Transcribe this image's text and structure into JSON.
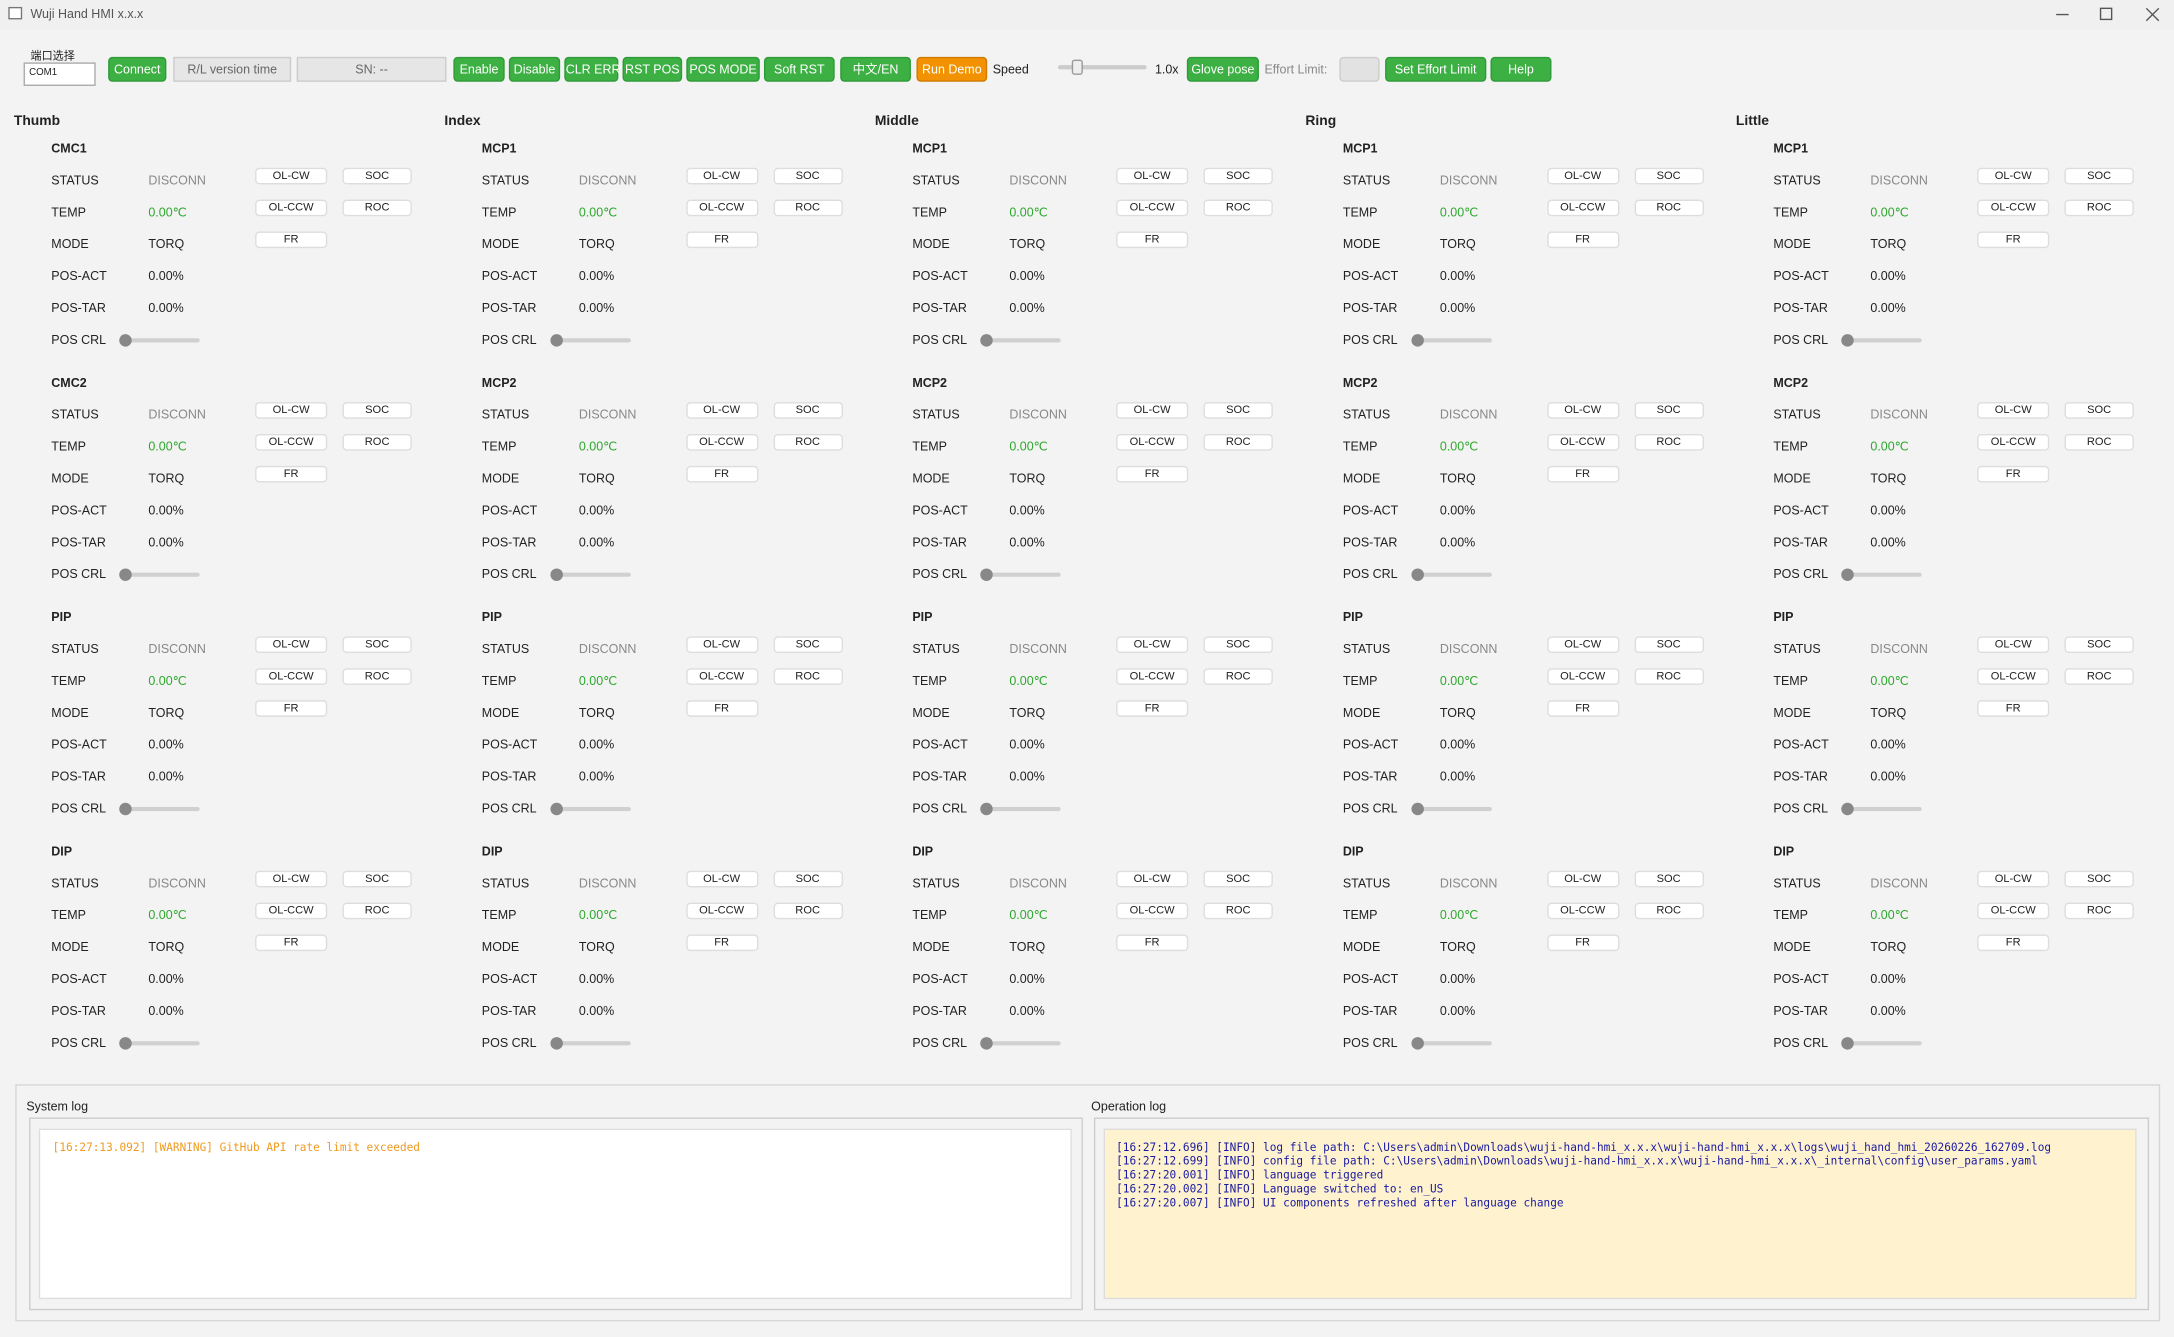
{
  "window": {
    "title": "Wuji Hand HMI x.x.x"
  },
  "toolbar": {
    "port_label": "端口选择",
    "port": "COM1",
    "connect": "Connect",
    "version": "R/L version time",
    "sn": "SN: --",
    "buttons": [
      "Enable",
      "Disable",
      "CLR ERR",
      "RST POS",
      "POS MODE",
      "Soft RST",
      "中文/EN"
    ],
    "run_demo": "Run Demo",
    "speed_label": "Speed",
    "speed_value": "1.0x",
    "glove": "Glove pose",
    "effort_label": "Effort Limit:",
    "set_effort": "Set Effort Limit",
    "help": "Help"
  },
  "fingers": [
    {
      "name": "Thumb",
      "joints": [
        {
          "name": "CMC1",
          "rows": [
            [
              "STATUS",
              "DISCONN"
            ],
            [
              "TEMP",
              "0.00℃"
            ],
            [
              "MODE",
              "TORQ"
            ],
            [
              "POS-ACT",
              "0.00%"
            ],
            [
              "POS-TAR",
              "0.00%"
            ],
            [
              "POS CRL"
            ]
          ],
          "buttons": [
            "OL-CW",
            "SOC",
            "OL-CCW",
            "ROC",
            "FR"
          ]
        },
        {
          "name": "CMC2",
          "rows": [
            [
              "STATUS",
              "DISCONN"
            ],
            [
              "TEMP",
              "0.00℃"
            ],
            [
              "MODE",
              "TORQ"
            ],
            [
              "POS-ACT",
              "0.00%"
            ],
            [
              "POS-TAR",
              "0.00%"
            ],
            [
              "POS CRL"
            ]
          ],
          "buttons": [
            "OL-CW",
            "SOC",
            "OL-CCW",
            "ROC",
            "FR"
          ]
        },
        {
          "name": "PIP",
          "rows": [
            [
              "STATUS",
              "DISCONN"
            ],
            [
              "TEMP",
              "0.00℃"
            ],
            [
              "MODE",
              "TORQ"
            ],
            [
              "POS-ACT",
              "0.00%"
            ],
            [
              "POS-TAR",
              "0.00%"
            ],
            [
              "POS CRL"
            ]
          ],
          "buttons": [
            "OL-CW",
            "SOC",
            "OL-CCW",
            "ROC",
            "FR"
          ]
        },
        {
          "name": "DIP",
          "rows": [
            [
              "STATUS",
              "DISCONN"
            ],
            [
              "TEMP",
              "0.00℃"
            ],
            [
              "MODE",
              "TORQ"
            ],
            [
              "POS-ACT",
              "0.00%"
            ],
            [
              "POS-TAR",
              "0.00%"
            ],
            [
              "POS CRL"
            ]
          ],
          "buttons": [
            "OL-CW",
            "SOC",
            "OL-CCW",
            "ROC",
            "FR"
          ]
        }
      ]
    },
    {
      "name": "Index",
      "joints": [
        {
          "name": "MCP1",
          "rows": [
            [
              "STATUS",
              "DISCONN"
            ],
            [
              "TEMP",
              "0.00℃"
            ],
            [
              "MODE",
              "TORQ"
            ],
            [
              "POS-ACT",
              "0.00%"
            ],
            [
              "POS-TAR",
              "0.00%"
            ],
            [
              "POS CRL"
            ]
          ],
          "buttons": [
            "OL-CW",
            "SOC",
            "OL-CCW",
            "ROC",
            "FR"
          ]
        },
        {
          "name": "MCP2",
          "rows": [
            [
              "STATUS",
              "DISCONN"
            ],
            [
              "TEMP",
              "0.00℃"
            ],
            [
              "MODE",
              "TORQ"
            ],
            [
              "POS-ACT",
              "0.00%"
            ],
            [
              "POS-TAR",
              "0.00%"
            ],
            [
              "POS CRL"
            ]
          ],
          "buttons": [
            "OL-CW",
            "SOC",
            "OL-CCW",
            "ROC",
            "FR"
          ]
        },
        {
          "name": "PIP",
          "rows": [
            [
              "STATUS",
              "DISCONN"
            ],
            [
              "TEMP",
              "0.00℃"
            ],
            [
              "MODE",
              "TORQ"
            ],
            [
              "POS-ACT",
              "0.00%"
            ],
            [
              "POS-TAR",
              "0.00%"
            ],
            [
              "POS CRL"
            ]
          ],
          "buttons": [
            "OL-CW",
            "SOC",
            "OL-CCW",
            "ROC",
            "FR"
          ]
        },
        {
          "name": "DIP",
          "rows": [
            [
              "STATUS",
              "DISCONN"
            ],
            [
              "TEMP",
              "0.00℃"
            ],
            [
              "MODE",
              "TORQ"
            ],
            [
              "POS-ACT",
              "0.00%"
            ],
            [
              "POS-TAR",
              "0.00%"
            ],
            [
              "POS CRL"
            ]
          ],
          "buttons": [
            "OL-CW",
            "SOC",
            "OL-CCW",
            "ROC",
            "FR"
          ]
        }
      ]
    },
    {
      "name": "Middle",
      "joints": [
        {
          "name": "MCP1",
          "rows": [
            [
              "STATUS",
              "DISCONN"
            ],
            [
              "TEMP",
              "0.00℃"
            ],
            [
              "MODE",
              "TORQ"
            ],
            [
              "POS-ACT",
              "0.00%"
            ],
            [
              "POS-TAR",
              "0.00%"
            ],
            [
              "POS CRL"
            ]
          ],
          "buttons": [
            "OL-CW",
            "SOC",
            "OL-CCW",
            "ROC",
            "FR"
          ]
        },
        {
          "name": "MCP2",
          "rows": [
            [
              "STATUS",
              "DISCONN"
            ],
            [
              "TEMP",
              "0.00℃"
            ],
            [
              "MODE",
              "TORQ"
            ],
            [
              "POS-ACT",
              "0.00%"
            ],
            [
              "POS-TAR",
              "0.00%"
            ],
            [
              "POS CRL"
            ]
          ],
          "buttons": [
            "OL-CW",
            "SOC",
            "OL-CCW",
            "ROC",
            "FR"
          ]
        },
        {
          "name": "PIP",
          "rows": [
            [
              "STATUS",
              "DISCONN"
            ],
            [
              "TEMP",
              "0.00℃"
            ],
            [
              "MODE",
              "TORQ"
            ],
            [
              "POS-ACT",
              "0.00%"
            ],
            [
              "POS-TAR",
              "0.00%"
            ],
            [
              "POS CRL"
            ]
          ],
          "buttons": [
            "OL-CW",
            "SOC",
            "OL-CCW",
            "ROC",
            "FR"
          ]
        },
        {
          "name": "DIP",
          "rows": [
            [
              "STATUS",
              "DISCONN"
            ],
            [
              "TEMP",
              "0.00℃"
            ],
            [
              "MODE",
              "TORQ"
            ],
            [
              "POS-ACT",
              "0.00%"
            ],
            [
              "POS-TAR",
              "0.00%"
            ],
            [
              "POS CRL"
            ]
          ],
          "buttons": [
            "OL-CW",
            "SOC",
            "OL-CCW",
            "ROC",
            "FR"
          ]
        }
      ]
    },
    {
      "name": "Ring",
      "joints": [
        {
          "name": "MCP1",
          "rows": [
            [
              "STATUS",
              "DISCONN"
            ],
            [
              "TEMP",
              "0.00℃"
            ],
            [
              "MODE",
              "TORQ"
            ],
            [
              "POS-ACT",
              "0.00%"
            ],
            [
              "POS-TAR",
              "0.00%"
            ],
            [
              "POS CRL"
            ]
          ],
          "buttons": [
            "OL-CW",
            "SOC",
            "OL-CCW",
            "ROC",
            "FR"
          ]
        },
        {
          "name": "MCP2",
          "rows": [
            [
              "STATUS",
              "DISCONN"
            ],
            [
              "TEMP",
              "0.00℃"
            ],
            [
              "MODE",
              "TORQ"
            ],
            [
              "POS-ACT",
              "0.00%"
            ],
            [
              "POS-TAR",
              "0.00%"
            ],
            [
              "POS CRL"
            ]
          ],
          "buttons": [
            "OL-CW",
            "SOC",
            "OL-CCW",
            "ROC",
            "FR"
          ]
        },
        {
          "name": "PIP",
          "rows": [
            [
              "STATUS",
              "DISCONN"
            ],
            [
              "TEMP",
              "0.00℃"
            ],
            [
              "MODE",
              "TORQ"
            ],
            [
              "POS-ACT",
              "0.00%"
            ],
            [
              "POS-TAR",
              "0.00%"
            ],
            [
              "POS CRL"
            ]
          ],
          "buttons": [
            "OL-CW",
            "SOC",
            "OL-CCW",
            "ROC",
            "FR"
          ]
        },
        {
          "name": "DIP",
          "rows": [
            [
              "STATUS",
              "DISCONN"
            ],
            [
              "TEMP",
              "0.00℃"
            ],
            [
              "MODE",
              "TORQ"
            ],
            [
              "POS-ACT",
              "0.00%"
            ],
            [
              "POS-TAR",
              "0.00%"
            ],
            [
              "POS CRL"
            ]
          ],
          "buttons": [
            "OL-CW",
            "SOC",
            "OL-CCW",
            "ROC",
            "FR"
          ]
        }
      ]
    },
    {
      "name": "Little",
      "joints": [
        {
          "name": "MCP1",
          "rows": [
            [
              "STATUS",
              "DISCONN"
            ],
            [
              "TEMP",
              "0.00℃"
            ],
            [
              "MODE",
              "TORQ"
            ],
            [
              "POS-ACT",
              "0.00%"
            ],
            [
              "POS-TAR",
              "0.00%"
            ],
            [
              "POS CRL"
            ]
          ],
          "buttons": [
            "OL-CW",
            "SOC",
            "OL-CCW",
            "ROC",
            "FR"
          ]
        },
        {
          "name": "MCP2",
          "rows": [
            [
              "STATUS",
              "DISCONN"
            ],
            [
              "TEMP",
              "0.00℃"
            ],
            [
              "MODE",
              "TORQ"
            ],
            [
              "POS-ACT",
              "0.00%"
            ],
            [
              "POS-TAR",
              "0.00%"
            ],
            [
              "POS CRL"
            ]
          ],
          "buttons": [
            "OL-CW",
            "SOC",
            "OL-CCW",
            "ROC",
            "FR"
          ]
        },
        {
          "name": "PIP",
          "rows": [
            [
              "STATUS",
              "DISCONN"
            ],
            [
              "TEMP",
              "0.00℃"
            ],
            [
              "MODE",
              "TORQ"
            ],
            [
              "POS-ACT",
              "0.00%"
            ],
            [
              "POS-TAR",
              "0.00%"
            ],
            [
              "POS CRL"
            ]
          ],
          "buttons": [
            "OL-CW",
            "SOC",
            "OL-CCW",
            "ROC",
            "FR"
          ]
        },
        {
          "name": "DIP",
          "rows": [
            [
              "STATUS",
              "DISCONN"
            ],
            [
              "TEMP",
              "0.00℃"
            ],
            [
              "MODE",
              "TORQ"
            ],
            [
              "POS-ACT",
              "0.00%"
            ],
            [
              "POS-TAR",
              "0.00%"
            ],
            [
              "POS CRL"
            ]
          ],
          "buttons": [
            "OL-CW",
            "SOC",
            "OL-CCW",
            "ROC",
            "FR"
          ]
        }
      ]
    }
  ],
  "logs": {
    "system": {
      "title": "System log",
      "lines": [
        "[16:27:13.092] [WARNING] GitHub API rate limit exceeded"
      ]
    },
    "operation": {
      "title": "Operation log",
      "lines": [
        "[16:27:12.696] [INFO] log file path: C:\\Users\\admin\\Downloads\\wuji-hand-hmi_x.x.x\\wuji-hand-hmi_x.x.x\\logs\\wuji_hand_hmi_20260226_162709.log",
        "[16:27:12.699] [INFO] config file path: C:\\Users\\admin\\Downloads\\wuji-hand-hmi_x.x.x\\wuji-hand-hmi_x.x.x\\_internal\\config\\user_params.yaml",
        "[16:27:20.001] [INFO] language triggered",
        "[16:27:20.002] [INFO] Language switched to: en_US",
        "[16:27:20.007] [INFO] UI components refreshed after language change"
      ]
    }
  }
}
